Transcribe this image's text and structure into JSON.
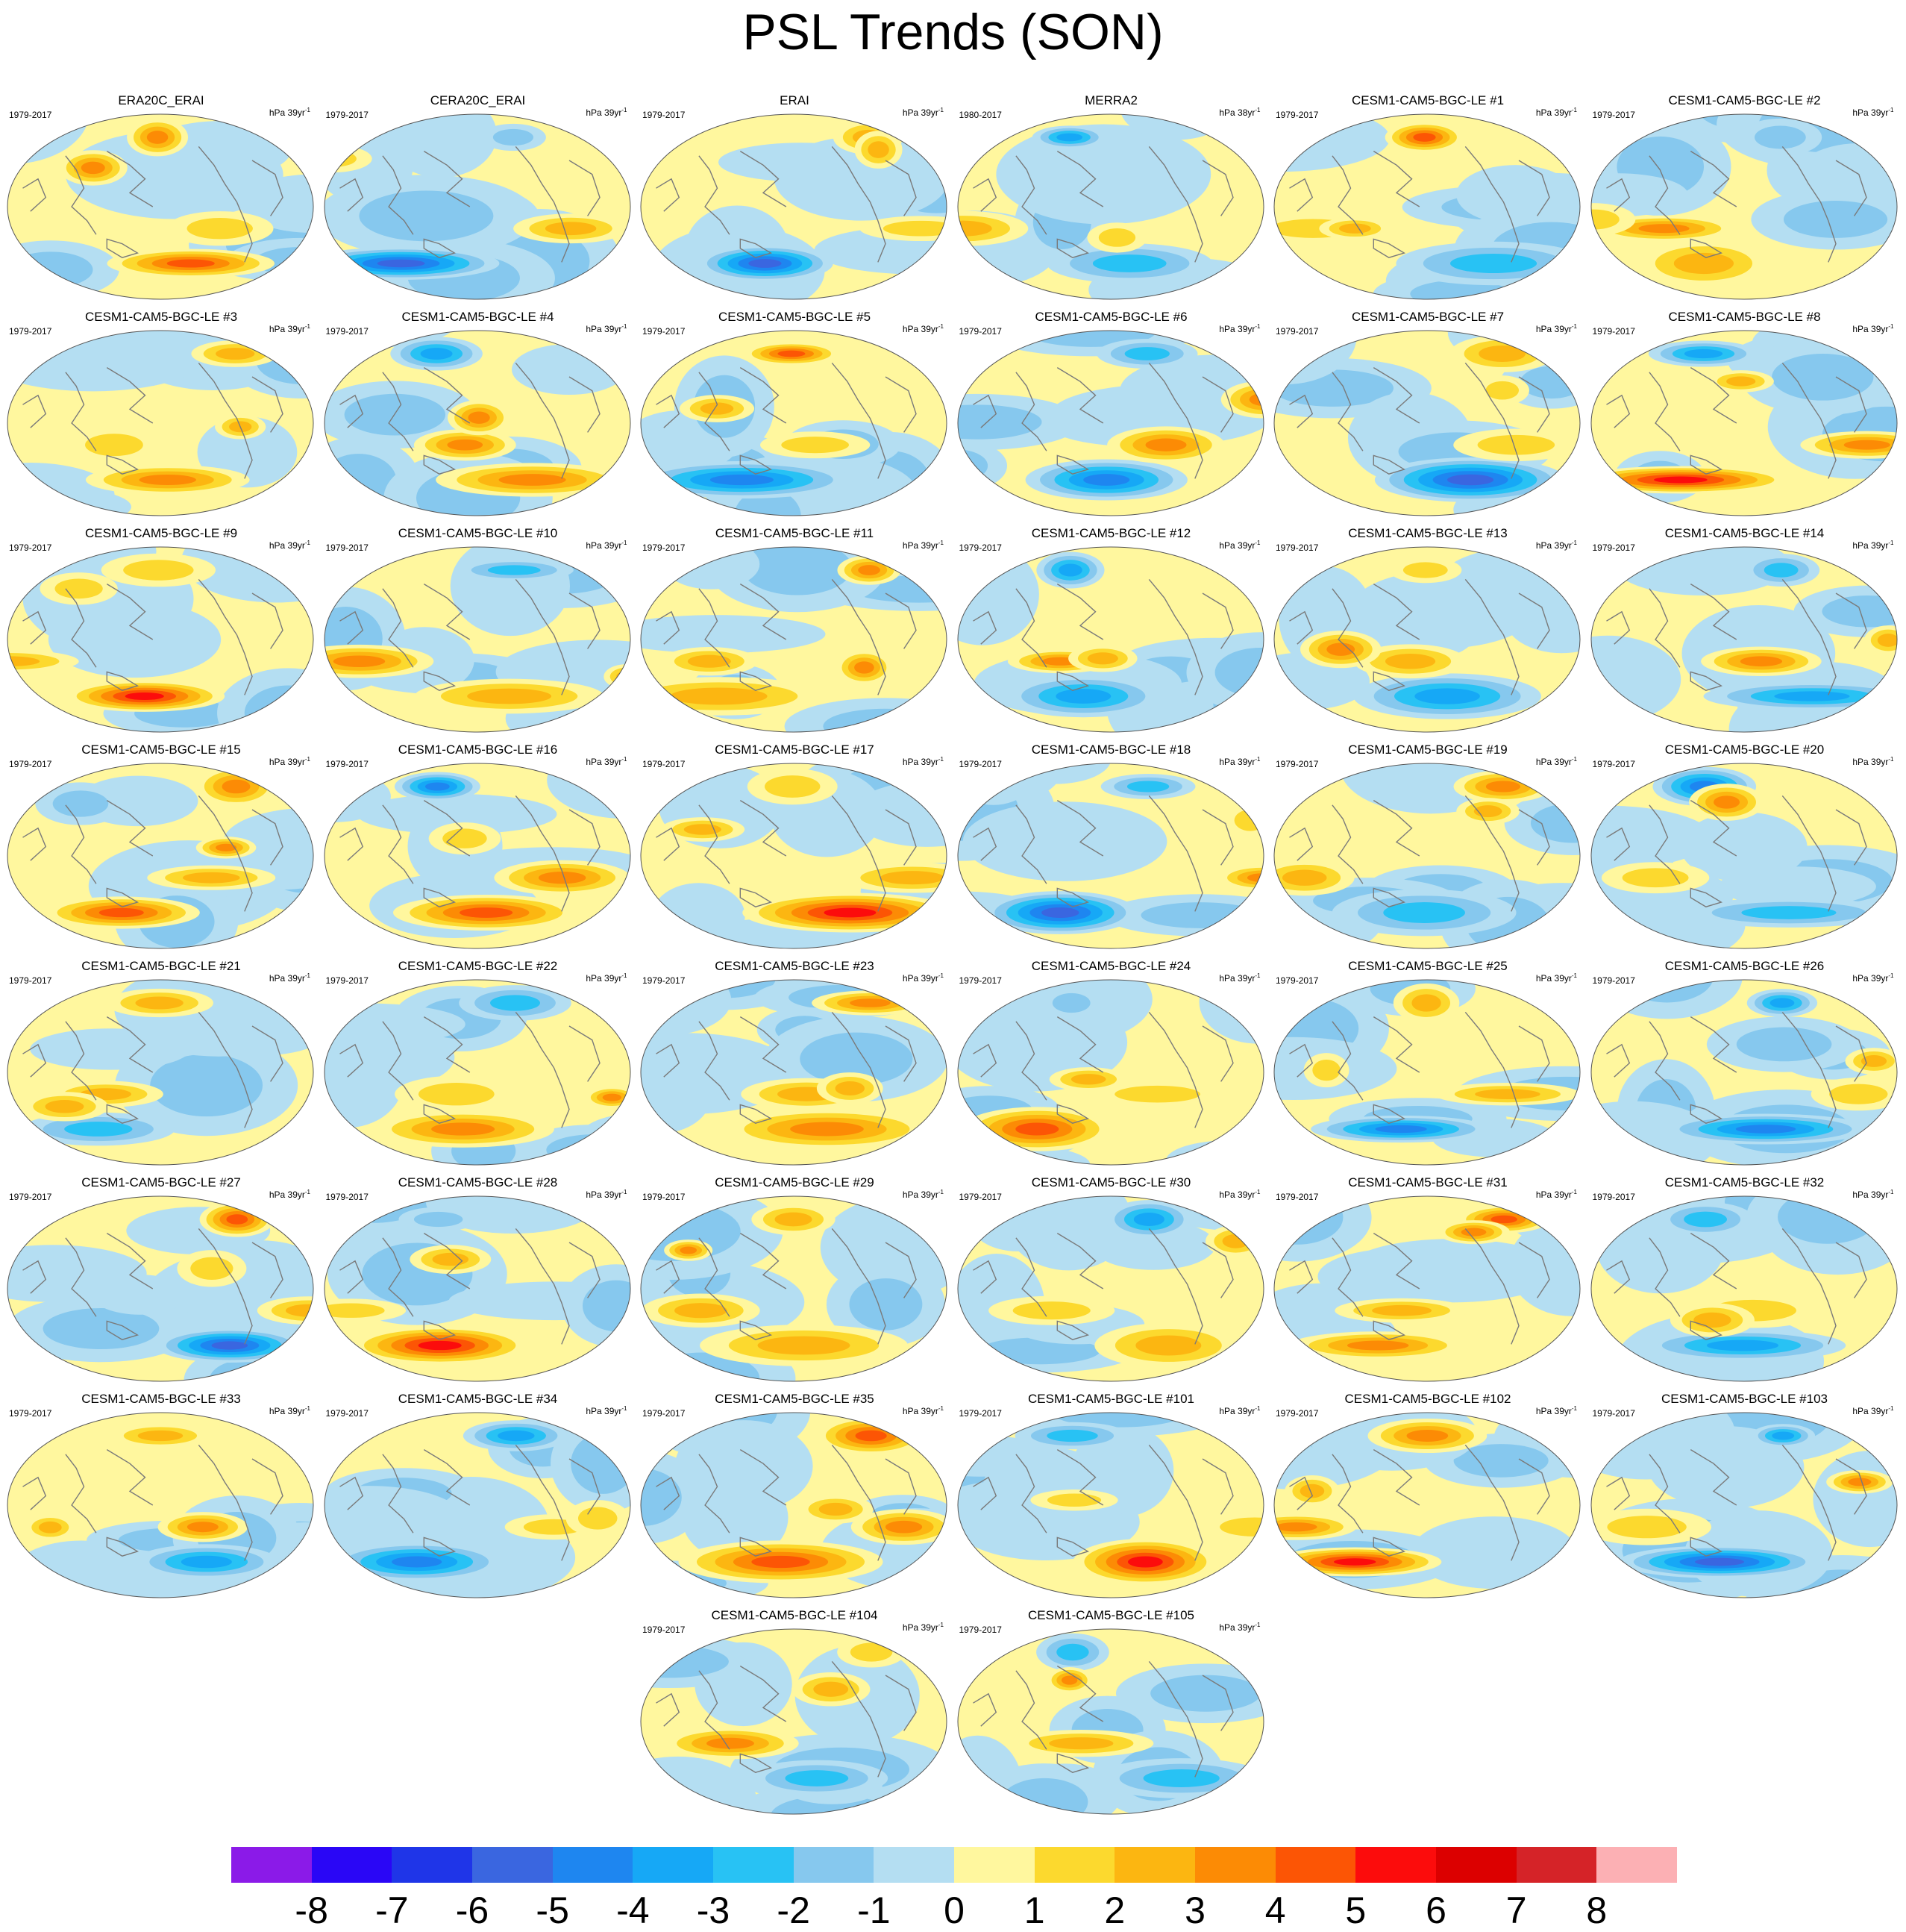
{
  "title": "PSL Trends (SON)",
  "panels": [
    {
      "name": "ERA20C_ERAI",
      "period": "1979-2017",
      "units": "hPa 39yr",
      "seed": 1
    },
    {
      "name": "CERA20C_ERAI",
      "period": "1979-2017",
      "units": "hPa 39yr",
      "seed": 2
    },
    {
      "name": "ERAI",
      "period": "1979-2017",
      "units": "hPa 39yr",
      "seed": 3
    },
    {
      "name": "MERRA2",
      "period": "1980-2017",
      "units": "hPa 38yr",
      "seed": 4
    },
    {
      "name": "CESM1-CAM5-BGC-LE #1",
      "period": "1979-2017",
      "units": "hPa 39yr",
      "seed": 5
    },
    {
      "name": "CESM1-CAM5-BGC-LE #2",
      "period": "1979-2017",
      "units": "hPa 39yr",
      "seed": 6
    },
    {
      "name": "CESM1-CAM5-BGC-LE #3",
      "period": "1979-2017",
      "units": "hPa 39yr",
      "seed": 7
    },
    {
      "name": "CESM1-CAM5-BGC-LE #4",
      "period": "1979-2017",
      "units": "hPa 39yr",
      "seed": 8
    },
    {
      "name": "CESM1-CAM5-BGC-LE #5",
      "period": "1979-2017",
      "units": "hPa 39yr",
      "seed": 9
    },
    {
      "name": "CESM1-CAM5-BGC-LE #6",
      "period": "1979-2017",
      "units": "hPa 39yr",
      "seed": 10
    },
    {
      "name": "CESM1-CAM5-BGC-LE #7",
      "period": "1979-2017",
      "units": "hPa 39yr",
      "seed": 11
    },
    {
      "name": "CESM1-CAM5-BGC-LE #8",
      "period": "1979-2017",
      "units": "hPa 39yr",
      "seed": 12
    },
    {
      "name": "CESM1-CAM5-BGC-LE #9",
      "period": "1979-2017",
      "units": "hPa 39yr",
      "seed": 13
    },
    {
      "name": "CESM1-CAM5-BGC-LE #10",
      "period": "1979-2017",
      "units": "hPa 39yr",
      "seed": 14
    },
    {
      "name": "CESM1-CAM5-BGC-LE #11",
      "period": "1979-2017",
      "units": "hPa 39yr",
      "seed": 15
    },
    {
      "name": "CESM1-CAM5-BGC-LE #12",
      "period": "1979-2017",
      "units": "hPa 39yr",
      "seed": 16
    },
    {
      "name": "CESM1-CAM5-BGC-LE #13",
      "period": "1979-2017",
      "units": "hPa 39yr",
      "seed": 17
    },
    {
      "name": "CESM1-CAM5-BGC-LE #14",
      "period": "1979-2017",
      "units": "hPa 39yr",
      "seed": 18
    },
    {
      "name": "CESM1-CAM5-BGC-LE #15",
      "period": "1979-2017",
      "units": "hPa 39yr",
      "seed": 19
    },
    {
      "name": "CESM1-CAM5-BGC-LE #16",
      "period": "1979-2017",
      "units": "hPa 39yr",
      "seed": 20
    },
    {
      "name": "CESM1-CAM5-BGC-LE #17",
      "period": "1979-2017",
      "units": "hPa 39yr",
      "seed": 21
    },
    {
      "name": "CESM1-CAM5-BGC-LE #18",
      "period": "1979-2017",
      "units": "hPa 39yr",
      "seed": 22
    },
    {
      "name": "CESM1-CAM5-BGC-LE #19",
      "period": "1979-2017",
      "units": "hPa 39yr",
      "seed": 23
    },
    {
      "name": "CESM1-CAM5-BGC-LE #20",
      "period": "1979-2017",
      "units": "hPa 39yr",
      "seed": 24
    },
    {
      "name": "CESM1-CAM5-BGC-LE #21",
      "period": "1979-2017",
      "units": "hPa 39yr",
      "seed": 25
    },
    {
      "name": "CESM1-CAM5-BGC-LE #22",
      "period": "1979-2017",
      "units": "hPa 39yr",
      "seed": 26
    },
    {
      "name": "CESM1-CAM5-BGC-LE #23",
      "period": "1979-2017",
      "units": "hPa 39yr",
      "seed": 27
    },
    {
      "name": "CESM1-CAM5-BGC-LE #24",
      "period": "1979-2017",
      "units": "hPa 39yr",
      "seed": 28
    },
    {
      "name": "CESM1-CAM5-BGC-LE #25",
      "period": "1979-2017",
      "units": "hPa 39yr",
      "seed": 29
    },
    {
      "name": "CESM1-CAM5-BGC-LE #26",
      "period": "1979-2017",
      "units": "hPa 39yr",
      "seed": 30
    },
    {
      "name": "CESM1-CAM5-BGC-LE #27",
      "period": "1979-2017",
      "units": "hPa 39yr",
      "seed": 31
    },
    {
      "name": "CESM1-CAM5-BGC-LE #28",
      "period": "1979-2017",
      "units": "hPa 39yr",
      "seed": 32
    },
    {
      "name": "CESM1-CAM5-BGC-LE #29",
      "period": "1979-2017",
      "units": "hPa 39yr",
      "seed": 33
    },
    {
      "name": "CESM1-CAM5-BGC-LE #30",
      "period": "1979-2017",
      "units": "hPa 39yr",
      "seed": 34
    },
    {
      "name": "CESM1-CAM5-BGC-LE #31",
      "period": "1979-2017",
      "units": "hPa 39yr",
      "seed": 35
    },
    {
      "name": "CESM1-CAM5-BGC-LE #32",
      "period": "1979-2017",
      "units": "hPa 39yr",
      "seed": 36
    },
    {
      "name": "CESM1-CAM5-BGC-LE #33",
      "period": "1979-2017",
      "units": "hPa 39yr",
      "seed": 37
    },
    {
      "name": "CESM1-CAM5-BGC-LE #34",
      "period": "1979-2017",
      "units": "hPa 39yr",
      "seed": 38
    },
    {
      "name": "CESM1-CAM5-BGC-LE #35",
      "period": "1979-2017",
      "units": "hPa 39yr",
      "seed": 39
    },
    {
      "name": "CESM1-CAM5-BGC-LE #101",
      "period": "1979-2017",
      "units": "hPa 39yr",
      "seed": 40
    },
    {
      "name": "CESM1-CAM5-BGC-LE #102",
      "period": "1979-2017",
      "units": "hPa 39yr",
      "seed": 41
    },
    {
      "name": "CESM1-CAM5-BGC-LE #103",
      "period": "1979-2017",
      "units": "hPa 39yr",
      "seed": 42
    },
    {
      "name": "CESM1-CAM5-BGC-LE #104",
      "period": "1979-2017",
      "units": "hPa 39yr",
      "seed": 43
    },
    {
      "name": "CESM1-CAM5-BGC-LE #105",
      "period": "1979-2017",
      "units": "hPa 39yr",
      "seed": 44
    }
  ],
  "colorbar": {
    "labels": [
      "-8",
      "-7",
      "-6",
      "-5",
      "-4",
      "-3",
      "-2",
      "-1",
      "0",
      "1",
      "2",
      "3",
      "4",
      "5",
      "6",
      "7",
      "8"
    ],
    "colors": [
      "#8b1ae8",
      "#2a06f6",
      "#1f35e8",
      "#3a66e0",
      "#1e86f0",
      "#16a8f6",
      "#28c2f4",
      "#86c8ee",
      "#b4def2",
      "#fff79e",
      "#fcd92e",
      "#fcb611",
      "#fc8b05",
      "#fc5505",
      "#fc0c0c",
      "#dc0000",
      "#d52328",
      "#fcb0b4"
    ]
  }
}
